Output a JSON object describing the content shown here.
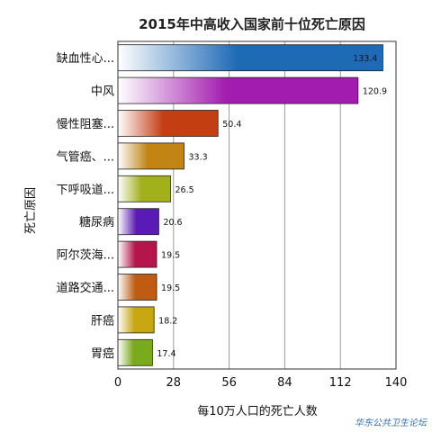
{
  "chart_data": {
    "type": "bar",
    "orientation": "horizontal",
    "title": "2015年中高收入国家前十位死亡原因",
    "xlabel": "每10万人口的死亡人数",
    "ylabel": "死亡原因",
    "xlim": [
      0,
      140
    ],
    "xticks": [
      "0",
      "28",
      "56",
      "84",
      "112",
      "140"
    ],
    "grid": true,
    "categories": [
      "缺血性心...",
      "中风",
      "慢性阻塞...",
      "气管癌、...",
      "下呼吸道...",
      "糖尿病",
      "阿尔茨海...",
      "道路交通...",
      "肝癌",
      "胃癌"
    ],
    "values": [
      133.4,
      120.9,
      50.4,
      33.3,
      26.5,
      20.6,
      19.5,
      19.5,
      18.2,
      17.4
    ],
    "value_labels": [
      "133.4",
      "120.9",
      "50.4",
      "33.3",
      "26.5",
      "20.6",
      "19.5",
      "19.5",
      "18.2",
      "17.4"
    ],
    "colors": [
      "#1e6ab5",
      "#a31cb0",
      "#c43e14",
      "#c28514",
      "#a2b01a",
      "#5a1ab5",
      "#b5154a",
      "#c05b10",
      "#c8a812",
      "#7aab1c"
    ]
  },
  "watermark": "华东公共卫生论坛"
}
